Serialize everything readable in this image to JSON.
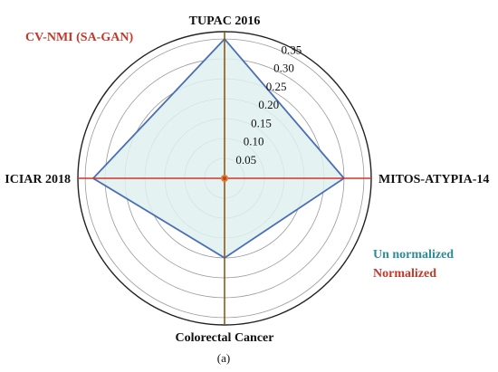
{
  "chart_data": {
    "type": "radar",
    "title": "CV-NMI (SA-GAN)",
    "panel_label": "(a)",
    "axes": [
      "TUPAC 2016",
      "MITOS-ATYPIA-14",
      "Colorectal Cancer",
      "ICIAR 2018"
    ],
    "radial_ticks": [
      0.05,
      0.1,
      0.15,
      0.2,
      0.25,
      0.3,
      0.35
    ],
    "radial_range": [
      0,
      0.35
    ],
    "grid": true,
    "legend_position": "bottom-right",
    "series": [
      {
        "name": "Un normalized",
        "values": [
          0.35,
          0.3,
          0.2,
          0.33
        ],
        "color": "#4a6fb5",
        "fill": "#dff0ee",
        "label_color": "#2e8b99"
      },
      {
        "name": "Normalized",
        "values": [
          0.005,
          0.005,
          0.005,
          0.005
        ],
        "color": "#c0392b",
        "label_color": "#c0392b"
      }
    ],
    "axis_line_colors": {
      "vertical": "#8b5a1a",
      "horizontal": "#d0342c"
    },
    "title_color": "#c0392b"
  }
}
